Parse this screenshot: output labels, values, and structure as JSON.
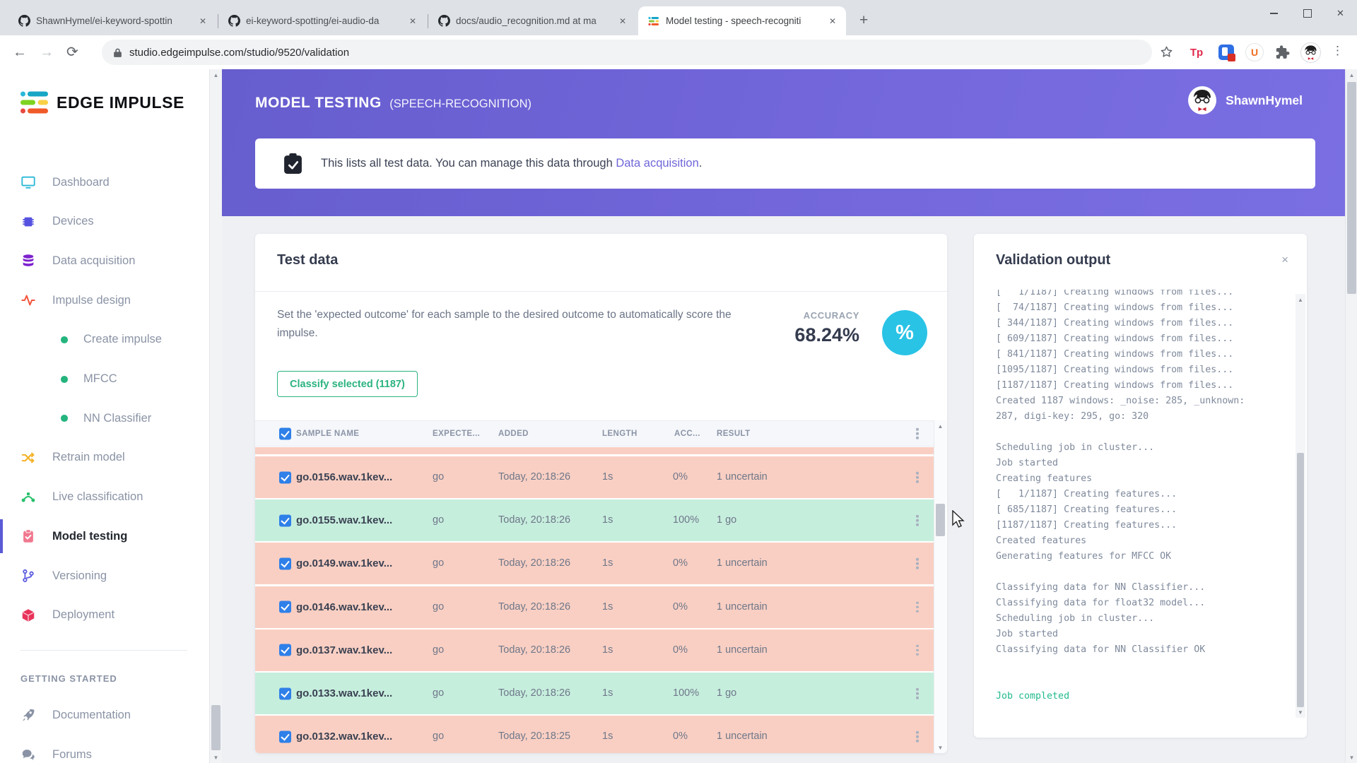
{
  "icons": {
    "back": "←",
    "forward": "→",
    "reload": "⟳",
    "star": "☆",
    "kebab": "⋮",
    "plus": "+",
    "close_tab": "✕",
    "close_window": "✕",
    "up_arrow": "▲",
    "down_arrow": "▼"
  },
  "browser": {
    "tabs": [
      {
        "label": "ShawnHymel/ei-keyword-spottin",
        "icon": "github",
        "active": false
      },
      {
        "label": "ei-keyword-spotting/ei-audio-da",
        "icon": "github",
        "active": false
      },
      {
        "label": "docs/audio_recognition.md at ma",
        "icon": "github",
        "active": false
      },
      {
        "label": "Model testing - speech-recogniti",
        "icon": "edge-impulse",
        "active": true
      }
    ],
    "url": "studio.edgeimpulse.com/studio/9520/validation",
    "extension_tp_label": "Tp",
    "extension_u_label": "U"
  },
  "sidebar": {
    "logo_text": "EDGE IMPULSE",
    "items": [
      {
        "label": "Dashboard",
        "icon": "dashboard",
        "color": "#2bb8d8",
        "sub": false,
        "active": false
      },
      {
        "label": "Devices",
        "icon": "chip",
        "color": "#5652e0",
        "sub": false,
        "active": false
      },
      {
        "label": "Data acquisition",
        "icon": "database",
        "color": "#7e22ce",
        "sub": false,
        "active": false
      },
      {
        "label": "Impulse design",
        "icon": "waveform",
        "color": "#f4543c",
        "sub": false,
        "active": false
      },
      {
        "label": "Create impulse",
        "icon": "dot",
        "color": "#24b47e",
        "sub": true,
        "active": false
      },
      {
        "label": "MFCC",
        "icon": "dot",
        "color": "#24b47e",
        "sub": true,
        "active": false
      },
      {
        "label": "NN Classifier",
        "icon": "dot",
        "color": "#24b47e",
        "sub": true,
        "active": false
      },
      {
        "label": "Retrain model",
        "icon": "shuffle",
        "color": "#f3b32a",
        "sub": false,
        "active": false
      },
      {
        "label": "Live classification",
        "icon": "nodes",
        "color": "#27c06b",
        "sub": false,
        "active": false
      },
      {
        "label": "Model testing",
        "icon": "clipboard",
        "color": "#f0788f",
        "sub": false,
        "active": true
      },
      {
        "label": "Versioning",
        "icon": "branch",
        "color": "#5b5be0",
        "sub": false,
        "active": false
      },
      {
        "label": "Deployment",
        "icon": "box",
        "color": "#e8335a",
        "sub": false,
        "active": false
      }
    ],
    "section_heading": "GETTING STARTED",
    "footer_items": [
      {
        "label": "Documentation",
        "icon": "rocket",
        "color": "#8a93a5"
      },
      {
        "label": "Forums",
        "icon": "chat",
        "color": "#8a93a5"
      }
    ]
  },
  "header": {
    "title": "MODEL TESTING",
    "subtitle": "(SPEECH-RECOGNITION)",
    "username": "ShawnHymel"
  },
  "banner": {
    "text": "This lists all test data. You can manage this data through ",
    "link_text": "Data acquisition",
    "suffix": "."
  },
  "test_data": {
    "title": "Test data",
    "description": "Set the 'expected outcome' for each sample to the desired outcome to automatically score the impulse.",
    "accuracy_label": "ACCURACY",
    "accuracy_value": "68.24%",
    "accuracy_icon": "%",
    "classify_button_label": "Classify selected (1187)",
    "columns": [
      "SAMPLE NAME",
      "EXPECTE...",
      "ADDED",
      "LENGTH",
      "ACC...",
      "RESULT"
    ],
    "rows": [
      {
        "sample": "go.0156.wav.1kev...",
        "expected": "go",
        "added": "Today, 20:18:26",
        "length": "1s",
        "accuracy": "0%",
        "result": "1 uncertain",
        "status": "fail"
      },
      {
        "sample": "go.0155.wav.1kev...",
        "expected": "go",
        "added": "Today, 20:18:26",
        "length": "1s",
        "accuracy": "100%",
        "result": "1 go",
        "status": "pass"
      },
      {
        "sample": "go.0149.wav.1kev...",
        "expected": "go",
        "added": "Today, 20:18:26",
        "length": "1s",
        "accuracy": "0%",
        "result": "1 uncertain",
        "status": "fail"
      },
      {
        "sample": "go.0146.wav.1kev...",
        "expected": "go",
        "added": "Today, 20:18:26",
        "length": "1s",
        "accuracy": "0%",
        "result": "1 uncertain",
        "status": "fail"
      },
      {
        "sample": "go.0137.wav.1kev...",
        "expected": "go",
        "added": "Today, 20:18:26",
        "length": "1s",
        "accuracy": "0%",
        "result": "1 uncertain",
        "status": "fail"
      },
      {
        "sample": "go.0133.wav.1kev...",
        "expected": "go",
        "added": "Today, 20:18:26",
        "length": "1s",
        "accuracy": "100%",
        "result": "1 go",
        "status": "pass"
      },
      {
        "sample": "go.0132.wav.1kev...",
        "expected": "go",
        "added": "Today, 20:18:25",
        "length": "1s",
        "accuracy": "0%",
        "result": "1 uncertain",
        "status": "fail"
      }
    ]
  },
  "validation": {
    "title": "Validation output",
    "close_label": "×",
    "lines": [
      {
        "text": "[   1/1187] Creating windows from files...",
        "green": false
      },
      {
        "text": "[  74/1187] Creating windows from files...",
        "green": false
      },
      {
        "text": "[ 344/1187] Creating windows from files...",
        "green": false
      },
      {
        "text": "[ 609/1187] Creating windows from files...",
        "green": false
      },
      {
        "text": "[ 841/1187] Creating windows from files...",
        "green": false
      },
      {
        "text": "[1095/1187] Creating windows from files...",
        "green": false
      },
      {
        "text": "[1187/1187] Creating windows from files...",
        "green": false
      },
      {
        "text": "Created 1187 windows: _noise: 285, _unknown: 287, digi-key: 295, go: 320",
        "green": false
      },
      {
        "text": "",
        "green": false
      },
      {
        "text": "Scheduling job in cluster...",
        "green": false
      },
      {
        "text": "Job started",
        "green": false
      },
      {
        "text": "Creating features",
        "green": false
      },
      {
        "text": "[   1/1187] Creating features...",
        "green": false
      },
      {
        "text": "[ 685/1187] Creating features...",
        "green": false
      },
      {
        "text": "[1187/1187] Creating features...",
        "green": false
      },
      {
        "text": "Created features",
        "green": false
      },
      {
        "text": "Generating features for MFCC OK",
        "green": false
      },
      {
        "text": "",
        "green": false
      },
      {
        "text": "Classifying data for NN Classifier...",
        "green": false
      },
      {
        "text": "Classifying data for float32 model...",
        "green": false
      },
      {
        "text": "Scheduling job in cluster...",
        "green": false
      },
      {
        "text": "Job started",
        "green": false
      },
      {
        "text": "Classifying data for NN Classifier OK",
        "green": false
      },
      {
        "text": "",
        "green": false
      },
      {
        "text": "",
        "green": false
      },
      {
        "text": "Job completed",
        "green": true
      }
    ]
  }
}
